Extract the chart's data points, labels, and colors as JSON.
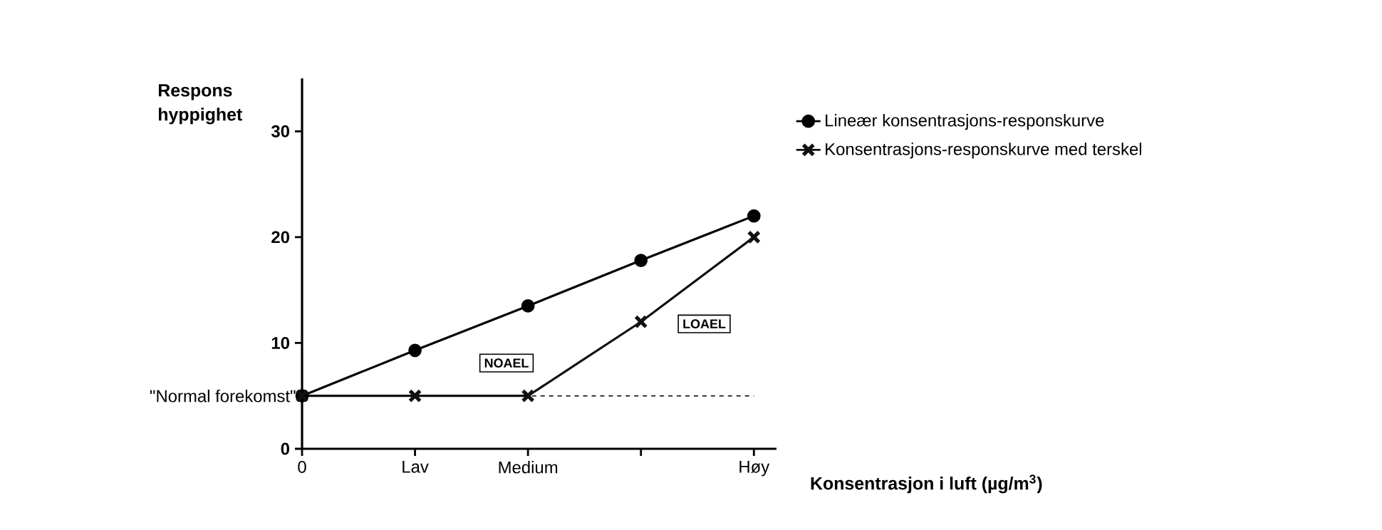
{
  "chart_data": {
    "type": "line",
    "categories": [
      "0",
      "Lav",
      "Medium",
      null,
      "Høy"
    ],
    "xlabel": "Konsentrasjon i luft (µg/m$^{3}$)",
    "ylabel": "Respons hyppighet",
    "ylim": [
      0,
      35
    ],
    "yticks": [
      0,
      10,
      20,
      30
    ],
    "series": [
      {
        "name": "Lineær konsentrasjons-responskurve",
        "color": "#000000",
        "marker": "circle",
        "values": [
          5,
          9.3,
          13.5,
          17.8,
          22
        ]
      },
      {
        "name": "Konsentrasjons-responskurve med terskel",
        "color": "#111111",
        "marker": "cross",
        "values": [
          5,
          5,
          5,
          12,
          20
        ]
      }
    ],
    "ref_lines": [
      {
        "axis": "y",
        "value": 5,
        "label": "\"Normal forekomst\"",
        "line_style": "dashed",
        "color": "#000000"
      }
    ],
    "annotations": [
      "NOAEL",
      "LOAEL"
    ],
    "legend": "right"
  }
}
